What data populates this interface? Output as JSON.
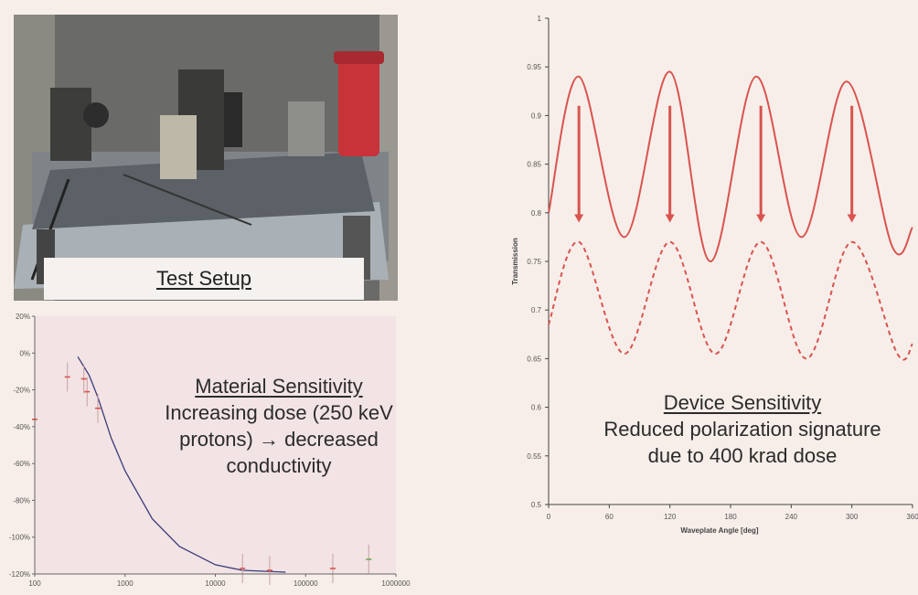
{
  "photo": {
    "caption": "Test Setup"
  },
  "material_text": {
    "heading": "Material Sensitivity",
    "line1": "Increasing dose (250 keV",
    "line2": "protons) → decreased",
    "line3": "conductivity"
  },
  "device_text": {
    "heading": "Device Sensitivity",
    "line1": "Reduced polarization signature",
    "line2": "due to 400 krad dose"
  },
  "chart_data": [
    {
      "type": "scatter",
      "xscale": "log",
      "xlim": [
        100,
        1000000
      ],
      "x_ticks": [
        "100",
        "1000",
        "10000",
        "100000",
        "1000000"
      ],
      "ylim": [
        -120,
        20
      ],
      "y_ticks": [
        "20%",
        "0%",
        "-20%",
        "-40%",
        "-60%",
        "-80%",
        "-100%",
        "-120%"
      ],
      "series": [
        {
          "x": [
            100,
            230,
            350,
            380,
            500,
            20000,
            40000,
            200000,
            500000
          ],
          "y": [
            -36,
            -13,
            -14,
            -21,
            -30,
            -117,
            -118,
            -117,
            -112
          ]
        }
      ],
      "fit_curve": {
        "x": [
          300,
          400,
          500,
          700,
          1000,
          2000,
          4000,
          10000,
          20000,
          60000
        ],
        "y": [
          -2,
          -12,
          -24,
          -46,
          -64,
          -90,
          -105,
          -115,
          -118,
          -119
        ]
      },
      "colors": {
        "points": "#d9534f",
        "error_bars": "#c8a2a2",
        "fit": "#3b3b7a",
        "last_point": "#6aa84f"
      }
    },
    {
      "type": "line",
      "x_label": "Waveplate Angle [deg]",
      "y_label": "Transmission",
      "xlim": [
        0,
        360
      ],
      "ylim": [
        0.5,
        1
      ],
      "x_ticks": [
        "0",
        "60",
        "120",
        "180",
        "240",
        "300",
        "360"
      ],
      "y_ticks": [
        "1",
        "0.95",
        "0.9",
        "0.85",
        "0.8",
        "0.75",
        "0.7",
        "0.65",
        "0.6",
        "0.55",
        "0.5"
      ],
      "series": [
        {
          "style": "solid",
          "x": [
            0,
            30,
            75,
            120,
            160,
            205,
            250,
            295,
            340,
            360
          ],
          "y": [
            0.8,
            0.94,
            0.775,
            0.945,
            0.75,
            0.94,
            0.775,
            0.935,
            0.765,
            0.785
          ]
        },
        {
          "style": "dashed",
          "x": [
            0,
            30,
            75,
            120,
            165,
            210,
            255,
            300,
            345,
            360
          ],
          "y": [
            0.685,
            0.77,
            0.655,
            0.77,
            0.655,
            0.77,
            0.65,
            0.77,
            0.655,
            0.665
          ]
        }
      ],
      "arrows_at_x": [
        30,
        120,
        210,
        300
      ],
      "colors": {
        "line": "#d9534f"
      }
    }
  ]
}
